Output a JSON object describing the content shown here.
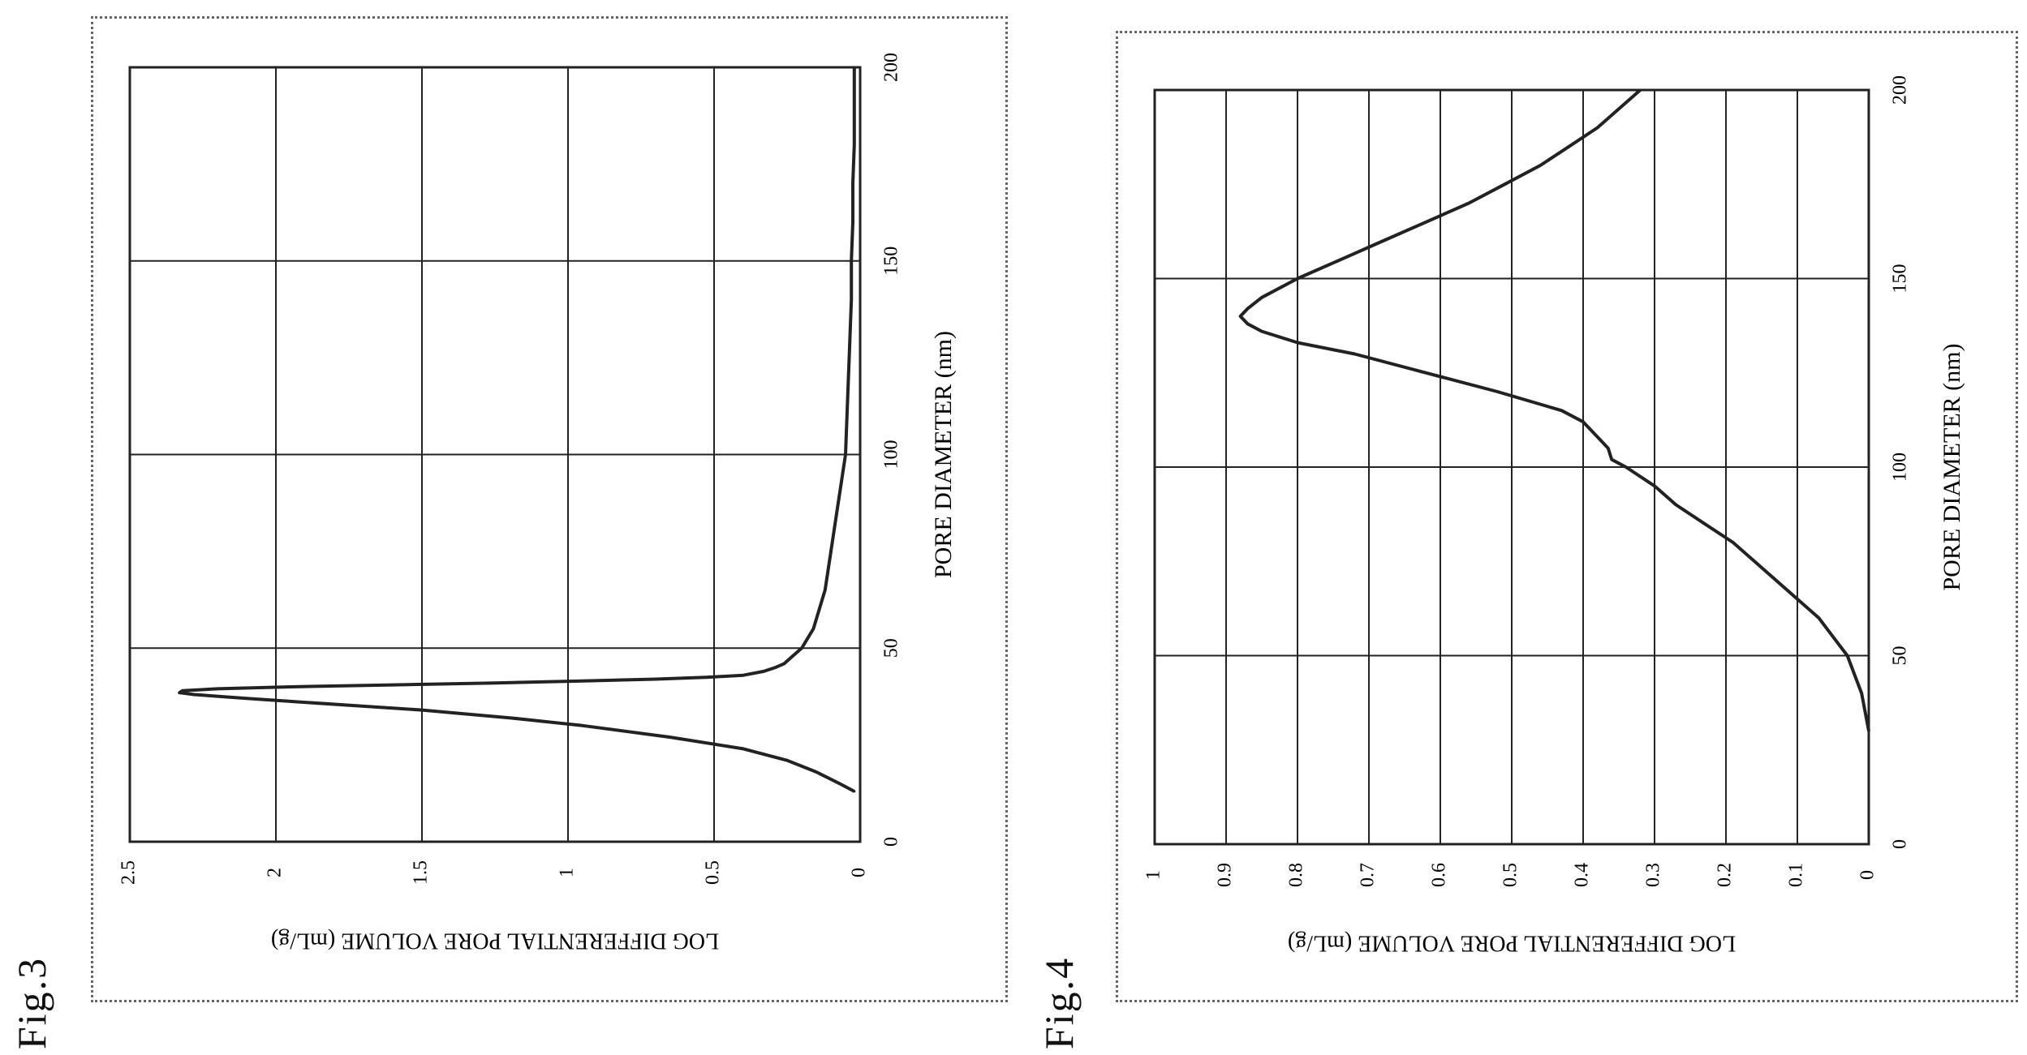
{
  "figures": [
    {
      "label": "Fig.3",
      "chart_data": {
        "type": "line",
        "xlabel": "PORE DIAMETER (nm)",
        "ylabel": "LOG DIFFERENTIAL PORE VOLUME (mL/g)",
        "xlim": [
          0,
          200
        ],
        "ylim": [
          0,
          2.5
        ],
        "xticks": [
          0,
          50,
          100,
          150,
          200
        ],
        "yticks": [
          0,
          0.5,
          1,
          1.5,
          2,
          2.5
        ],
        "ytick_labels": [
          "0",
          "0.5",
          "1",
          "1.5",
          "2",
          "2.5"
        ],
        "grid": true,
        "series": [
          {
            "x": [
              13,
              15,
              18,
              21,
              24,
              27,
              30,
              32,
              34,
              35,
              36,
              37,
              38,
              38.5,
              39,
              39.5,
              40,
              40.5,
              41,
              41.5,
              42,
              42.5,
              43,
              44,
              45,
              46,
              48,
              50,
              55,
              60,
              65,
              70,
              75,
              80,
              85,
              90,
              95,
              100,
              110,
              120,
              130,
              140,
              150,
              160,
              170,
              180,
              190,
              200
            ],
            "y": [
              0.02,
              0.07,
              0.15,
              0.25,
              0.4,
              0.65,
              0.95,
              1.2,
              1.5,
              1.7,
              1.9,
              2.1,
              2.28,
              2.33,
              2.32,
              2.2,
              1.95,
              1.6,
              1.25,
              0.95,
              0.7,
              0.52,
              0.4,
              0.33,
              0.29,
              0.26,
              0.23,
              0.2,
              0.16,
              0.14,
              0.12,
              0.11,
              0.1,
              0.09,
              0.08,
              0.07,
              0.06,
              0.05,
              0.045,
              0.04,
              0.035,
              0.03,
              0.03,
              0.025,
              0.025,
              0.02,
              0.02,
              0.02
            ]
          }
        ]
      }
    },
    {
      "label": "Fig.4",
      "chart_data": {
        "type": "line",
        "xlabel": "PORE DIAMETER (nm)",
        "ylabel": "LOG DIFFERENTIAL PORE VOLUME (mL/g)",
        "xlim": [
          0,
          200
        ],
        "ylim": [
          0,
          1
        ],
        "xticks": [
          0,
          50,
          100,
          150,
          200
        ],
        "yticks": [
          0,
          0.1,
          0.2,
          0.3,
          0.4,
          0.5,
          0.6,
          0.7,
          0.8,
          0.9,
          1
        ],
        "ytick_labels": [
          "0",
          "0.1",
          "0.2",
          "0.3",
          "0.4",
          "0.5",
          "0.6",
          "0.7",
          "0.8",
          "0.9",
          "1"
        ],
        "grid": true,
        "series": [
          {
            "x": [
              30,
              35,
              40,
              45,
              50,
              55,
              60,
              65,
              70,
              75,
              80,
              85,
              90,
              95,
              100,
              102,
              105,
              108,
              110,
              112,
              115,
              120,
              125,
              130,
              133,
              136,
              138,
              140,
              142,
              145,
              150,
              155,
              160,
              165,
              170,
              175,
              180,
              185,
              190,
              195,
              200
            ],
            "y": [
              0.0,
              0.005,
              0.01,
              0.02,
              0.03,
              0.05,
              0.07,
              0.1,
              0.13,
              0.16,
              0.19,
              0.23,
              0.27,
              0.3,
              0.34,
              0.36,
              0.365,
              0.38,
              0.39,
              0.4,
              0.43,
              0.52,
              0.62,
              0.72,
              0.8,
              0.85,
              0.87,
              0.88,
              0.87,
              0.85,
              0.8,
              0.74,
              0.68,
              0.62,
              0.56,
              0.51,
              0.46,
              0.42,
              0.38,
              0.35,
              0.32
            ]
          }
        ]
      }
    }
  ]
}
